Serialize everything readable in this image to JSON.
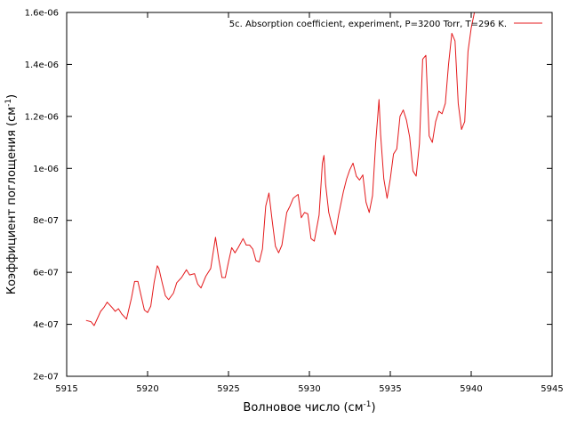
{
  "chart_data": {
    "type": "line",
    "xlabel_main": "Волновое число (см",
    "xlabel_sup": "-1",
    "xlabel_end": ")",
    "ylabel_main": "Коэффициент поглощения (см",
    "ylabel_sup": "-1",
    "ylabel_end": ")",
    "xlim": [
      5915,
      5945
    ],
    "ylim": [
      2e-07,
      1.6e-06
    ],
    "xticks": [
      5915,
      5920,
      5925,
      5930,
      5935,
      5940,
      5945
    ],
    "xtick_labels": [
      "5915",
      "5920",
      "5925",
      "5930",
      "5935",
      "5940",
      "5945"
    ],
    "yticks": [
      2e-07,
      4e-07,
      6e-07,
      8e-07,
      1e-06,
      1.2e-06,
      1.4e-06,
      1.6e-06
    ],
    "ytick_labels": [
      "2e-07",
      "4e-07",
      "6e-07",
      "8e-07",
      "1e-06",
      "1.2e-06",
      "1.4e-06",
      "1.6e-06"
    ],
    "grid": false,
    "legend_position": "top-right",
    "series": [
      {
        "name": "5c. Absorption coefficient, experiment, P=3200 Torr, T=296 K.",
        "color": "#e41a1c",
        "x": [
          5916.2,
          5916.5,
          5916.7,
          5917.1,
          5917.3,
          5917.5,
          5917.8,
          5918.0,
          5918.2,
          5918.4,
          5918.7,
          5919.0,
          5919.2,
          5919.4,
          5919.6,
          5919.8,
          5920.0,
          5920.2,
          5920.4,
          5920.6,
          5920.7,
          5920.9,
          5921.1,
          5921.3,
          5921.6,
          5921.8,
          5922.1,
          5922.4,
          5922.6,
          5922.9,
          5923.1,
          5923.3,
          5923.6,
          5923.9,
          5924.2,
          5924.4,
          5924.6,
          5924.8,
          5925.0,
          5925.2,
          5925.4,
          5925.6,
          5925.9,
          5926.1,
          5926.3,
          5926.5,
          5926.7,
          5926.9,
          5927.1,
          5927.3,
          5927.5,
          5927.7,
          5927.9,
          5928.1,
          5928.3,
          5928.6,
          5928.8,
          5929.0,
          5929.3,
          5929.5,
          5929.7,
          5929.9,
          5930.1,
          5930.3,
          5930.6,
          5930.8,
          5930.9,
          5931.0,
          5931.2,
          5931.4,
          5931.6,
          5931.8,
          5932.1,
          5932.3,
          5932.5,
          5932.7,
          5932.9,
          5933.1,
          5933.3,
          5933.5,
          5933.7,
          5933.9,
          5934.1,
          5934.3,
          5934.4,
          5934.6,
          5934.8,
          5935.0,
          5935.2,
          5935.4,
          5935.6,
          5935.8,
          5936.0,
          5936.2,
          5936.4,
          5936.6,
          5936.8,
          5937.0,
          5937.2,
          5937.4,
          5937.6,
          5937.8,
          5938.0,
          5938.2,
          5938.4,
          5938.6,
          5938.8,
          5939.0,
          5939.2,
          5939.4,
          5939.6,
          5939.8,
          5940.0,
          5940.2,
          5940.4
        ],
        "y": [
          4.15e-07,
          4.1e-07,
          3.95e-07,
          4.5e-07,
          4.65e-07,
          4.85e-07,
          4.65e-07,
          4.5e-07,
          4.6e-07,
          4.4e-07,
          4.2e-07,
          5e-07,
          5.65e-07,
          5.65e-07,
          5.1e-07,
          4.55e-07,
          4.45e-07,
          4.7e-07,
          5.6e-07,
          6.25e-07,
          6.15e-07,
          5.6e-07,
          5.1e-07,
          4.95e-07,
          5.2e-07,
          5.6e-07,
          5.8e-07,
          6.1e-07,
          5.9e-07,
          5.95e-07,
          5.55e-07,
          5.4e-07,
          5.85e-07,
          6.15e-07,
          7.35e-07,
          6.5e-07,
          5.8e-07,
          5.8e-07,
          6.4e-07,
          6.95e-07,
          6.75e-07,
          6.95e-07,
          7.3e-07,
          7.05e-07,
          7.05e-07,
          6.9e-07,
          6.45e-07,
          6.4e-07,
          6.9e-07,
          8.55e-07,
          9.05e-07,
          8e-07,
          7e-07,
          6.75e-07,
          7.05e-07,
          8.3e-07,
          8.55e-07,
          8.85e-07,
          9e-07,
          8.1e-07,
          8.3e-07,
          8.25e-07,
          7.3e-07,
          7.2e-07,
          8.2e-07,
          1.02e-06,
          1.05e-06,
          9.4e-07,
          8.3e-07,
          7.8e-07,
          7.45e-07,
          8.2e-07,
          9.1e-07,
          9.6e-07,
          9.95e-07,
          1.02e-06,
          9.7e-07,
          9.55e-07,
          9.75e-07,
          8.7e-07,
          8.3e-07,
          8.95e-07,
          1.1e-06,
          1.265e-06,
          1.13e-06,
          9.6e-07,
          8.85e-07,
          9.6e-07,
          1.055e-06,
          1.075e-06,
          1.2e-06,
          1.225e-06,
          1.185e-06,
          1.12e-06,
          9.9e-07,
          9.7e-07,
          1.095e-06,
          1.42e-06,
          1.435e-06,
          1.125e-06,
          1.1e-06,
          1.18e-06,
          1.22e-06,
          1.21e-06,
          1.25e-06,
          1.4e-06,
          1.52e-06,
          1.49e-06,
          1.25e-06,
          1.15e-06,
          1.18e-06,
          1.45e-06,
          1.54e-06,
          1.6e-06,
          1.6e-06
        ]
      }
    ]
  }
}
